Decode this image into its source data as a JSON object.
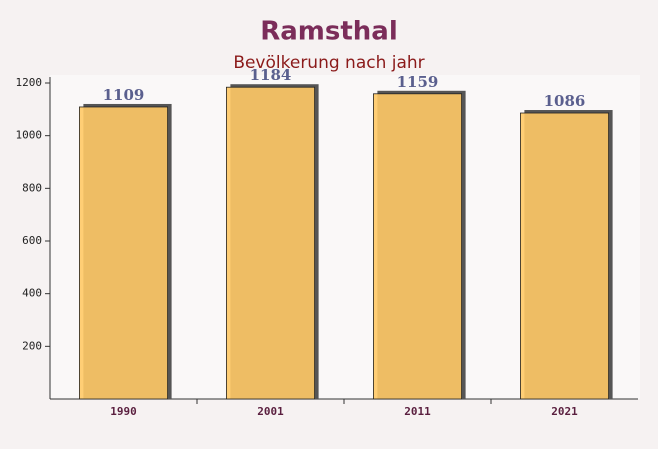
{
  "chart_data": {
    "type": "bar",
    "title": "Ramsthal",
    "subtitle": "Bevölkerung nach jahr",
    "categories": [
      "1990",
      "2001",
      "2011",
      "2021"
    ],
    "values": [
      1109,
      1184,
      1159,
      1086
    ],
    "color": "#ffc966",
    "ylim": [
      0,
      1200
    ],
    "yticks": [
      200,
      400,
      600,
      800,
      1000,
      1200
    ]
  }
}
